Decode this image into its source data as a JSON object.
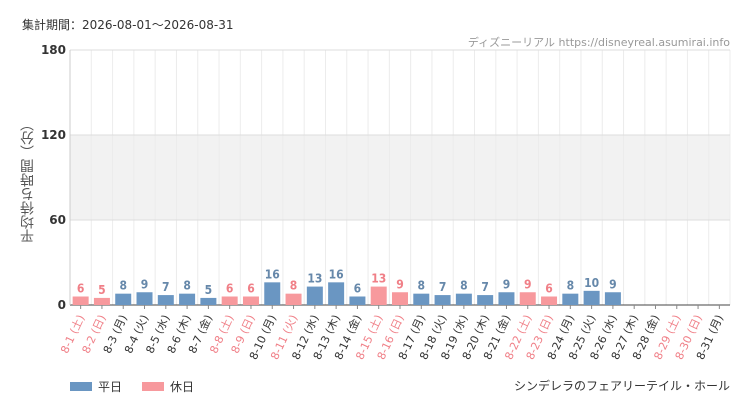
{
  "header": {
    "period": "集計期間：2026-08-01～2026-08-31",
    "site": "ディズニーリアル https://disneyreal.asumirai.info"
  },
  "footer": {
    "attraction": "シンデレラのフェアリーテイル・ホール"
  },
  "legend": [
    {
      "label": "平日",
      "color": "#6a96c2"
    },
    {
      "label": "休日",
      "color": "#f7999d"
    }
  ],
  "colors": {
    "weekday_bar": "#6a96c2",
    "holiday_bar": "#f7999d",
    "weekday_text": "#333333",
    "holiday_text": "#f07f87",
    "weekday_value": "#6688aa",
    "holiday_value": "#f07f87",
    "band": "#f2f2f2"
  },
  "chart_data": {
    "type": "bar",
    "ylabel": "平均待ち時間（分）",
    "ylim": [
      0,
      180
    ],
    "yticks": [
      0,
      60,
      120,
      180
    ],
    "grid": true,
    "categories": [
      "8-1 (土)",
      "8-2 (日)",
      "8-3 (月)",
      "8-4 (火)",
      "8-5 (水)",
      "8-6 (木)",
      "8-7 (金)",
      "8-8 (土)",
      "8-9 (日)",
      "8-10 (月)",
      "8-11 (火)",
      "8-12 (水)",
      "8-13 (木)",
      "8-14 (金)",
      "8-15 (土)",
      "8-16 (日)",
      "8-17 (月)",
      "8-18 (火)",
      "8-19 (水)",
      "8-20 (木)",
      "8-21 (金)",
      "8-22 (土)",
      "8-23 (日)",
      "8-24 (月)",
      "8-25 (火)",
      "8-26 (水)",
      "8-27 (木)",
      "8-28 (金)",
      "8-29 (土)",
      "8-30 (日)",
      "8-31 (月)"
    ],
    "holiday": [
      true,
      true,
      false,
      false,
      false,
      false,
      false,
      true,
      true,
      false,
      true,
      false,
      false,
      false,
      true,
      true,
      false,
      false,
      false,
      false,
      false,
      true,
      true,
      false,
      false,
      false,
      false,
      false,
      true,
      true,
      false
    ],
    "values": [
      6,
      5,
      8,
      9,
      7,
      8,
      5,
      6,
      6,
      16,
      8,
      13,
      16,
      6,
      13,
      9,
      8,
      7,
      8,
      7,
      9,
      9,
      6,
      8,
      10,
      9,
      null,
      null,
      null,
      null,
      null
    ]
  }
}
